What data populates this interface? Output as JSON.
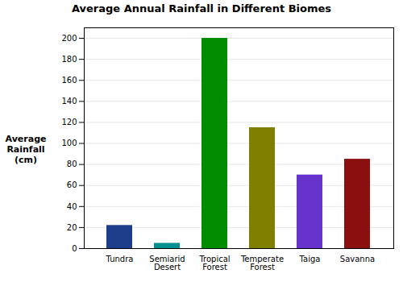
{
  "chart_data": {
    "type": "bar",
    "title": "Average Annual Rainfall in Different Biomes",
    "ylabel": "Average\nRainfall\n(cm)",
    "categories": [
      "Tundra",
      "Semiarid\nDesert",
      "Tropical\nForest",
      "Temperate\nForest",
      "Taiga",
      "Savanna"
    ],
    "values": [
      22,
      5,
      200,
      115,
      70,
      85
    ],
    "colors": [
      "#1c3e8a",
      "#009090",
      "#008c00",
      "#808000",
      "#6633cc",
      "#8B1010"
    ],
    "ylim": [
      0,
      210
    ],
    "yticks": [
      0,
      20,
      40,
      60,
      80,
      100,
      120,
      140,
      160,
      180,
      200
    ],
    "grid": true
  }
}
